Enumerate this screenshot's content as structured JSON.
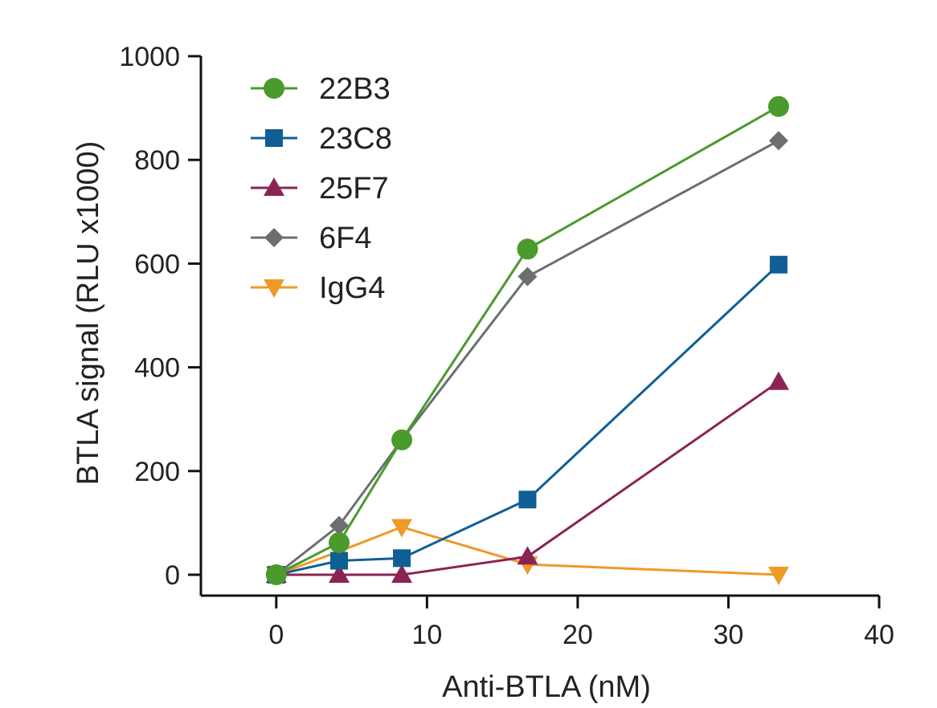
{
  "chart_data": {
    "type": "line",
    "xlabel": "Anti-BTLA (nM)",
    "ylabel": "BTLA signal (RLU x1000)",
    "xlim": [
      -5,
      40
    ],
    "ylim": [
      0,
      1000
    ],
    "xticks": [
      "0",
      "10",
      "20",
      "30",
      "40"
    ],
    "yticks": [
      "0",
      "200",
      "400",
      "600",
      "800",
      "1000"
    ],
    "x": [
      0,
      4.17,
      8.33,
      16.67,
      33.33
    ],
    "legend_position": "top-left",
    "grid": false,
    "series": [
      {
        "name": "22B3",
        "marker": "circle",
        "color": "#4a9a2c",
        "values": [
          0,
          62,
          260,
          628,
          903
        ]
      },
      {
        "name": "23C8",
        "marker": "square",
        "color": "#0f5e95",
        "values": [
          0,
          27,
          32,
          145,
          598
        ]
      },
      {
        "name": "25F7",
        "marker": "triangle-up",
        "color": "#8b2454",
        "values": [
          0,
          0,
          0,
          35,
          372
        ]
      },
      {
        "name": "6F4",
        "marker": "diamond",
        "color": "#6b6f70",
        "values": [
          0,
          95,
          260,
          575,
          837
        ]
      },
      {
        "name": "IgG4",
        "marker": "triangle-down",
        "color": "#ee9a27",
        "values": [
          0,
          45,
          92,
          20,
          0
        ]
      }
    ]
  }
}
